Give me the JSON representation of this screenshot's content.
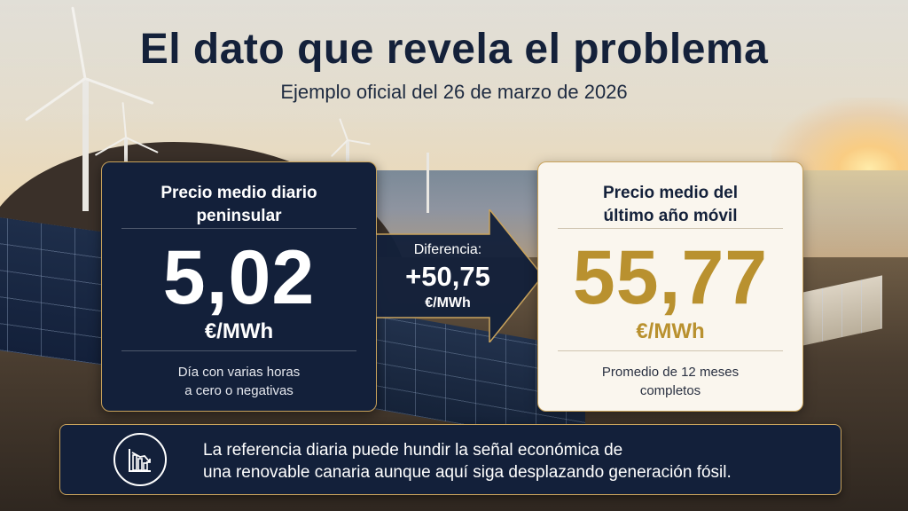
{
  "header": {
    "title": "El dato que revela el problema",
    "subtitle": "Ejemplo oficial del 26 de marzo de 2026"
  },
  "daily_card": {
    "heading_line1": "Precio medio diario",
    "heading_line2": "peninsular",
    "value": "5,02",
    "unit": "€/MWh",
    "note_line1": "Día con varias horas",
    "note_line2": "a cero o negativas"
  },
  "difference": {
    "label": "Diferencia:",
    "value": "+50,75",
    "unit": "€/MWh"
  },
  "annual_card": {
    "heading_line1": "Precio medio del",
    "heading_line2": "último año móvil",
    "value": "55,77",
    "unit": "€/MWh",
    "note_line1": "Promedio de 12 meses",
    "note_line2": "completos"
  },
  "banner": {
    "icon": "declining-bar-chart-icon",
    "text_line1": "La referencia diaria puede hundir la señal económica de",
    "text_line2": "una renovable canaria aunque aquí siga desplazando generación fósil."
  },
  "colors": {
    "navy": "#13203a",
    "gold": "#b9912f",
    "border_gold": "#c9a35c",
    "cream": "#faf6ee"
  }
}
